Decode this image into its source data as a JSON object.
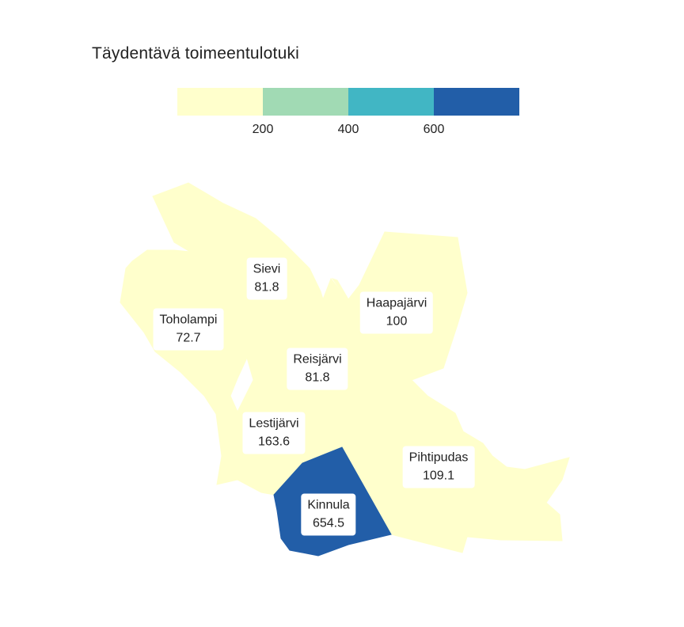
{
  "title": "Täydentävä toimeentulotuki",
  "legend": {
    "colors": [
      "#ffffcc",
      "#a1dab4",
      "#41b6c4",
      "#225ea8"
    ],
    "ticks": [
      "200",
      "400",
      "600"
    ]
  },
  "regions": [
    {
      "name": "Sievi",
      "value": "81.8",
      "color": "#ffffcc"
    },
    {
      "name": "Toholampi",
      "value": "72.7",
      "color": "#ffffcc"
    },
    {
      "name": "Haapajärvi",
      "value": "100",
      "color": "#ffffcc"
    },
    {
      "name": "Reisjärvi",
      "value": "81.8",
      "color": "#ffffcc"
    },
    {
      "name": "Lestijärvi",
      "value": "163.6",
      "color": "#ffffcc"
    },
    {
      "name": "Pihtipudas",
      "value": "109.1",
      "color": "#ffffcc"
    },
    {
      "name": "Kinnula",
      "value": "654.5",
      "color": "#225ea8"
    }
  ]
}
